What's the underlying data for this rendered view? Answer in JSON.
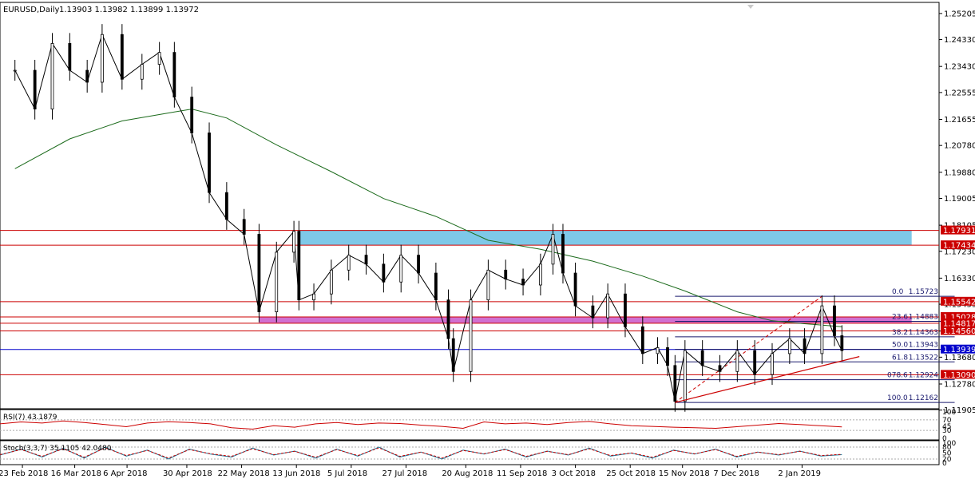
{
  "chart_title": "EURUSD,Daily",
  "ohlc_values": "1.13903 1.13982 1.13899 1.13972",
  "chart_data": {
    "type": "line",
    "title": "EURUSD,Daily 1.13903 1.13982 1.13899 1.13972",
    "symbol": "EURUSD",
    "timeframe": "Daily",
    "ylim": [
      1.1195,
      1.2555
    ],
    "y_ticks": [
      "1.25205",
      "1.24330",
      "1.23430",
      "1.22555",
      "1.21655",
      "1.20780",
      "1.19880",
      "1.19005",
      "1.18105",
      "1.17230",
      "1.16330",
      "1.15455",
      "1.14555",
      "1.13680",
      "1.12780",
      "1.11905"
    ],
    "x_tick_labels": [
      "23 Feb 2018",
      "16 Mar 2018",
      "6 Apr 2018",
      "30 Apr 2018",
      "22 May 2018",
      "13 Jun 2018",
      "5 Jul 2018",
      "27 Jul 2018",
      "20 Aug 2018",
      "11 Sep 2018",
      "3 Oct 2018",
      "25 Oct 2018",
      "15 Nov 2018",
      "7 Dec 2018",
      "2 Jan 2019"
    ],
    "price_series": [
      {
        "date": "2018-02-20",
        "close": 1.233
      },
      {
        "date": "2018-02-28",
        "close": 1.22
      },
      {
        "date": "2018-03-07",
        "close": 1.242
      },
      {
        "date": "2018-03-14",
        "close": 1.233
      },
      {
        "date": "2018-03-21",
        "close": 1.229
      },
      {
        "date": "2018-03-27",
        "close": 1.245
      },
      {
        "date": "2018-04-04",
        "close": 1.23
      },
      {
        "date": "2018-04-12",
        "close": 1.235
      },
      {
        "date": "2018-04-19",
        "close": 1.239
      },
      {
        "date": "2018-04-25",
        "close": 1.224
      },
      {
        "date": "2018-05-02",
        "close": 1.212
      },
      {
        "date": "2018-05-09",
        "close": 1.192
      },
      {
        "date": "2018-05-16",
        "close": 1.183
      },
      {
        "date": "2018-05-23",
        "close": 1.178
      },
      {
        "date": "2018-05-29",
        "close": 1.152
      },
      {
        "date": "2018-06-05",
        "close": 1.172
      },
      {
        "date": "2018-06-12",
        "close": 1.179
      },
      {
        "date": "2018-06-14",
        "close": 1.156
      },
      {
        "date": "2018-06-20",
        "close": 1.158
      },
      {
        "date": "2018-06-27",
        "close": 1.166
      },
      {
        "date": "2018-07-04",
        "close": 1.171
      },
      {
        "date": "2018-07-11",
        "close": 1.168
      },
      {
        "date": "2018-07-18",
        "close": 1.162
      },
      {
        "date": "2018-07-25",
        "close": 1.171
      },
      {
        "date": "2018-08-01",
        "close": 1.165
      },
      {
        "date": "2018-08-08",
        "close": 1.156
      },
      {
        "date": "2018-08-13",
        "close": 1.143
      },
      {
        "date": "2018-08-15",
        "close": 1.132
      },
      {
        "date": "2018-08-22",
        "close": 1.156
      },
      {
        "date": "2018-08-29",
        "close": 1.166
      },
      {
        "date": "2018-09-05",
        "close": 1.163
      },
      {
        "date": "2018-09-12",
        "close": 1.161
      },
      {
        "date": "2018-09-19",
        "close": 1.168
      },
      {
        "date": "2018-09-24",
        "close": 1.178
      },
      {
        "date": "2018-09-28",
        "close": 1.165
      },
      {
        "date": "2018-10-03",
        "close": 1.154
      },
      {
        "date": "2018-10-10",
        "close": 1.15
      },
      {
        "date": "2018-10-16",
        "close": 1.158
      },
      {
        "date": "2018-10-23",
        "close": 1.147
      },
      {
        "date": "2018-10-30",
        "close": 1.138
      },
      {
        "date": "2018-11-05",
        "close": 1.14
      },
      {
        "date": "2018-11-09",
        "close": 1.134
      },
      {
        "date": "2018-11-12",
        "close": 1.122
      },
      {
        "date": "2018-11-16",
        "close": 1.139
      },
      {
        "date": "2018-11-23",
        "close": 1.134
      },
      {
        "date": "2018-11-30",
        "close": 1.132
      },
      {
        "date": "2018-12-07",
        "close": 1.139
      },
      {
        "date": "2018-12-14",
        "close": 1.131
      },
      {
        "date": "2018-12-21",
        "close": 1.138
      },
      {
        "date": "2018-12-28",
        "close": 1.143
      },
      {
        "date": "2019-01-03",
        "close": 1.138
      },
      {
        "date": "2019-01-10",
        "close": 1.154
      },
      {
        "date": "2019-01-15",
        "close": 1.144
      },
      {
        "date": "2019-01-18",
        "close": 1.139
      }
    ],
    "moving_average": [
      {
        "date": "2018-02-20",
        "value": 1.2
      },
      {
        "date": "2018-03-14",
        "value": 1.21
      },
      {
        "date": "2018-04-04",
        "value": 1.216
      },
      {
        "date": "2018-04-25",
        "value": 1.219
      },
      {
        "date": "2018-05-02",
        "value": 1.22
      },
      {
        "date": "2018-05-16",
        "value": 1.217
      },
      {
        "date": "2018-06-05",
        "value": 1.208
      },
      {
        "date": "2018-06-27",
        "value": 1.199
      },
      {
        "date": "2018-07-18",
        "value": 1.19
      },
      {
        "date": "2018-08-08",
        "value": 1.184
      },
      {
        "date": "2018-08-29",
        "value": 1.176
      },
      {
        "date": "2018-09-19",
        "value": 1.173
      },
      {
        "date": "2018-10-10",
        "value": 1.169
      },
      {
        "date": "2018-10-30",
        "value": 1.164
      },
      {
        "date": "2018-11-16",
        "value": 1.159
      },
      {
        "date": "2018-12-07",
        "value": 1.152
      },
      {
        "date": "2018-12-21",
        "value": 1.149
      },
      {
        "date": "2019-01-03",
        "value": 1.148
      },
      {
        "date": "2019-01-18",
        "value": 1.147
      }
    ],
    "horizontal_levels": [
      {
        "label": "1.17931",
        "value": 1.17931,
        "color": "#cc0000"
      },
      {
        "label": "1.17434",
        "value": 1.17434,
        "color": "#cc0000"
      },
      {
        "label": "1.15542",
        "value": 1.15542,
        "color": "#cc0000"
      },
      {
        "label": "1.15028",
        "value": 1.15028,
        "color": "#cc0000"
      },
      {
        "label": "1.14817",
        "value": 1.14817,
        "color": "#cc0000"
      },
      {
        "label": "1.14560",
        "value": 1.1456,
        "color": "#cc0000"
      },
      {
        "label": "1.13939",
        "value": 1.13939,
        "color": "#0000cc"
      },
      {
        "label": "1.13090",
        "value": 1.1309,
        "color": "#cc0000"
      }
    ],
    "zones": [
      {
        "name": "supply",
        "from": "2018-06-14",
        "to": "2019-02-15",
        "y1": 1.17434,
        "y2": 1.17931,
        "color": "#7ec8e8"
      },
      {
        "name": "demand",
        "from": "2018-05-29",
        "to": "2019-02-15",
        "y1": 1.14817,
        "y2": 1.15028,
        "color": "#d070d0"
      }
    ],
    "fibonacci": [
      {
        "ratio": "0.0",
        "price": "1.15723",
        "value": 1.15723
      },
      {
        "ratio": "23.6",
        "price": "1.14883",
        "value": 1.14883
      },
      {
        "ratio": "38.2",
        "price": "1.14363",
        "value": 1.14363
      },
      {
        "ratio": "50.0",
        "price": "1.13943",
        "value": 1.13943
      },
      {
        "ratio": "61.8",
        "price": "1.13522",
        "value": 1.13522
      },
      {
        "ratio": "078.6",
        "price": "1.12924",
        "value": 1.12924
      },
      {
        "ratio": "100.0",
        "price": "1.12162",
        "value": 1.12162
      }
    ],
    "trendline": {
      "from": {
        "date": "2018-11-12",
        "value": 1.1216
      },
      "to": {
        "date": "2019-01-25",
        "value": 1.137
      },
      "color": "#cc0000"
    },
    "rsi": {
      "label": "RSI(7) 43.1879",
      "ticks": [
        "100",
        "70",
        "45",
        "30",
        "0"
      ],
      "values": [
        55,
        62,
        58,
        66,
        60,
        52,
        44,
        58,
        63,
        60,
        55,
        40,
        35,
        48,
        42,
        55,
        60,
        52,
        58,
        56,
        50,
        45,
        38,
        62,
        55,
        58,
        52,
        60,
        64,
        55,
        48,
        45,
        42,
        40,
        38,
        44,
        50,
        56,
        52,
        48,
        43
      ]
    },
    "stoch": {
      "label": "Stoch(3,3,7) 35.1105 42.0480",
      "ticks": [
        "100",
        "80",
        "50",
        "20",
        "0"
      ],
      "values": [
        40,
        70,
        30,
        75,
        25,
        80,
        35,
        65,
        20,
        70,
        45,
        30,
        75,
        40,
        60,
        25,
        70,
        35,
        80,
        30,
        55,
        20,
        65,
        45,
        70,
        30,
        60,
        40,
        75,
        35,
        50,
        25,
        65,
        45,
        70,
        30,
        55,
        40,
        60,
        35,
        42
      ]
    }
  }
}
